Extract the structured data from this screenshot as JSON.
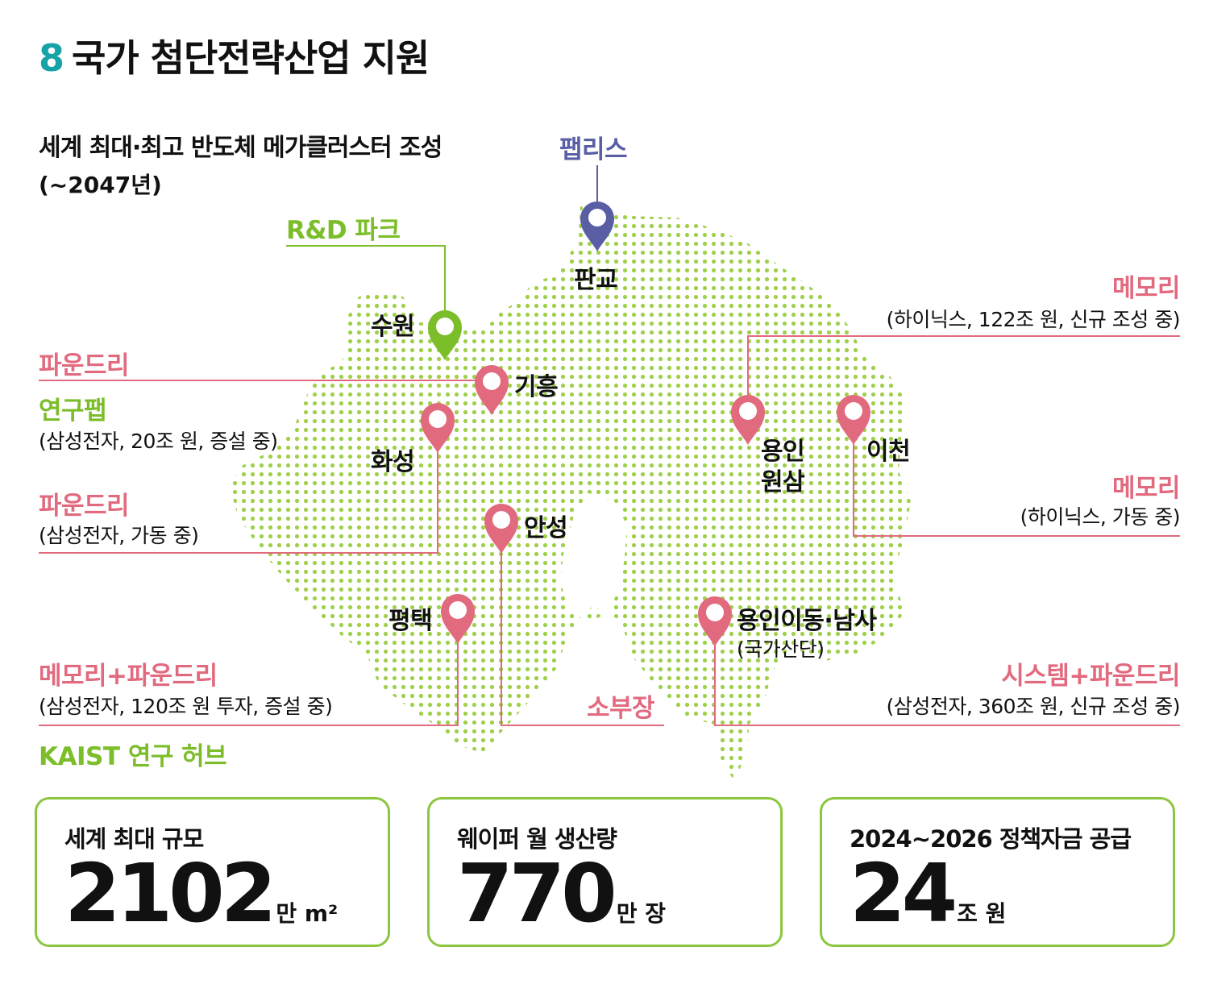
{
  "title": {
    "number": "8",
    "text": "국가 첨단전략산업 지원"
  },
  "subtitle": {
    "line1": "세계 최대·최고 반도체 메가클러스터 조성",
    "line2": "(~2047년)"
  },
  "colors": {
    "accent_teal": "#16a3a8",
    "pink": "#e26a7f",
    "green": "#7cbd2a",
    "navy": "#5a5fa5",
    "dot_green": "#9fd04a",
    "card_border": "#8cc63f"
  },
  "map": {
    "top_label": "팹리스",
    "rnd_label": "R&D 파크",
    "cities": {
      "pangyo": "판교",
      "suwon": "수원",
      "giheung": "기흥",
      "hwaseong": "화성",
      "yongin_wonsam_1": "용인",
      "yongin_wonsam_2": "원삼",
      "icheon": "이천",
      "anseong": "안성",
      "pyeongtaek": "평택",
      "yongin_idong": "용인이동·남사",
      "yongin_idong_sub": "(국가산단)"
    },
    "callouts": {
      "left_foundry_1": "파운드리",
      "left_lab": "연구팹",
      "left_lab_detail": "(삼성전자, 20조 원, 증설 중)",
      "left_foundry_2": "파운드리",
      "left_foundry_2_detail": "(삼성전자, 가동 중)",
      "left_memfoundry": "메모리+파운드리",
      "left_memfoundry_detail": "(삼성전자, 120조 원 투자, 증설 중)",
      "left_kaist": "KAIST 연구 허브",
      "right_memory_1": "메모리",
      "right_memory_1_detail": "(하이닉스, 122조 원, 신규 조성 중)",
      "right_memory_2": "메모리",
      "right_memory_2_detail": "(하이닉스, 가동 중)",
      "right_system": "시스템+파운드리",
      "right_system_detail": "(삼성전자, 360조 원, 신규 조성 중)",
      "bottom_sobujang": "소부장"
    }
  },
  "cards": [
    {
      "label": "세계 최대 규모",
      "value": "2102",
      "unit": "만 m²"
    },
    {
      "label": "웨이퍼 월 생산량",
      "value": "770",
      "unit": "만 장"
    },
    {
      "label": "2024~2026 정책자금 공급",
      "value": "24",
      "unit": "조 원"
    }
  ]
}
